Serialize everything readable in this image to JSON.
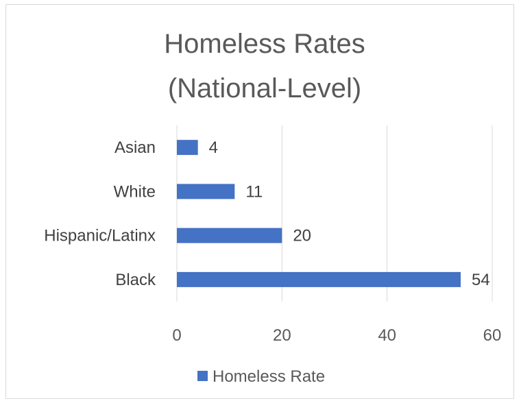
{
  "chart_data": {
    "type": "bar",
    "orientation": "horizontal",
    "title": [
      "Homeless Rates",
      "(National-Level)"
    ],
    "categories": [
      "Asian",
      "White",
      "Hispanic/Latinx",
      "Black"
    ],
    "series": [
      {
        "name": "Homeless Rate",
        "values": [
          4,
          11,
          20,
          54
        ],
        "color": "#4472c4"
      }
    ],
    "xlim": [
      0,
      60
    ],
    "xticks": [
      0,
      20,
      40,
      60
    ],
    "grid": true,
    "legend_position": "bottom",
    "data_labels": true
  }
}
